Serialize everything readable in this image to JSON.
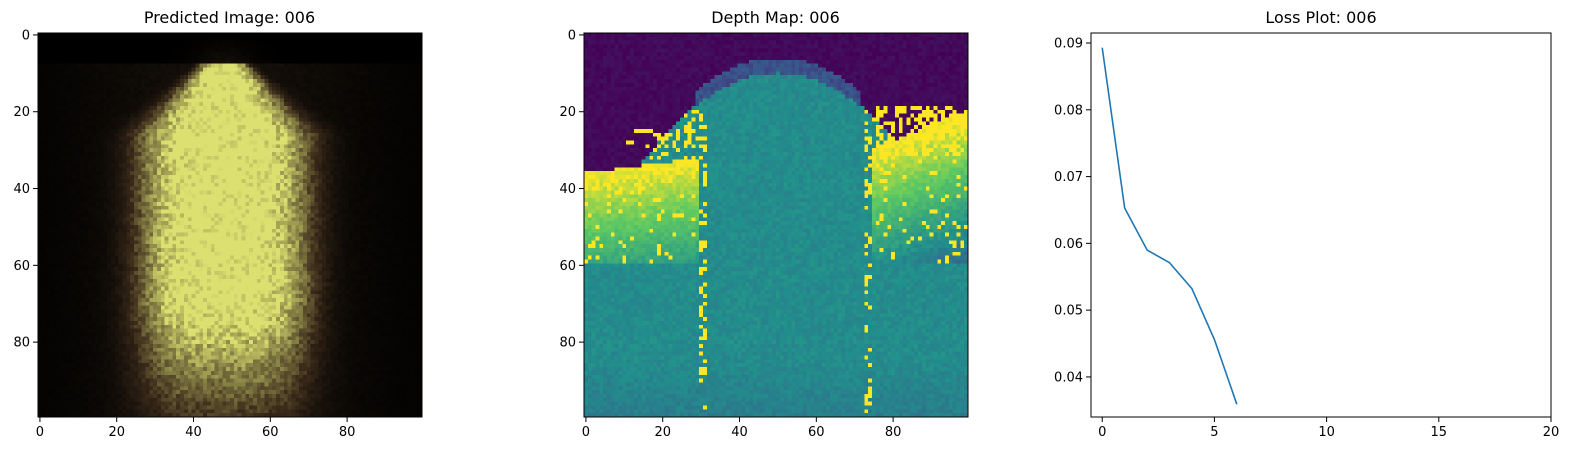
{
  "figure": {
    "panels": [
      {
        "title": "Predicted Image: 006"
      },
      {
        "title": "Depth Map: 006"
      },
      {
        "title": "Loss Plot: 006"
      }
    ]
  },
  "chart_data": [
    {
      "type": "heatmap",
      "title": "Predicted Image: 006",
      "xlabel": "",
      "ylabel": "",
      "xlim": [
        0,
        99
      ],
      "ylim": [
        99,
        0
      ],
      "xticks": [
        0,
        20,
        40,
        60,
        80
      ],
      "yticks": [
        0,
        20,
        40,
        60,
        80
      ],
      "grid": false,
      "colors": {
        "background": "#000000",
        "highlight": "#dbe070",
        "mid": "#8f8a4a",
        "dark": "#3a2a1a"
      },
      "content": "RGB image: bright yellow elongated blob centered near column 48, rows 5-100, on dark background"
    },
    {
      "type": "heatmap",
      "title": "Depth Map: 006",
      "xlabel": "",
      "ylabel": "",
      "xlim": [
        0,
        99
      ],
      "ylim": [
        99,
        0
      ],
      "xticks": [
        0,
        20,
        40,
        60,
        80
      ],
      "yticks": [
        0,
        20,
        40,
        60,
        80
      ],
      "grid": false,
      "colors": {
        "background": "#440154",
        "low": "#3b528b",
        "mid": "#21918c",
        "high": "#5ec962",
        "top": "#fde725"
      },
      "content": "viridis depth map: purple top region, teal dome centered near column 50, yellow shoulders at columns 0-30 and 75-99 around rows 20-55"
    },
    {
      "type": "line",
      "title": "Loss Plot: 006",
      "xlabel": "",
      "ylabel": "",
      "xlim": [
        -0.5,
        20
      ],
      "ylim": [
        0.034,
        0.0915
      ],
      "xticks": [
        0,
        5,
        10,
        15,
        20
      ],
      "yticks": [
        0.04,
        0.05,
        0.06,
        0.07,
        0.08,
        0.09
      ],
      "grid": false,
      "series": [
        {
          "color": "#1f77b4",
          "x": [
            0,
            1,
            2,
            3,
            4,
            5,
            6
          ],
          "y": [
            0.0893,
            0.0653,
            0.059,
            0.0571,
            0.0532,
            0.0456,
            0.0359
          ]
        }
      ]
    }
  ]
}
